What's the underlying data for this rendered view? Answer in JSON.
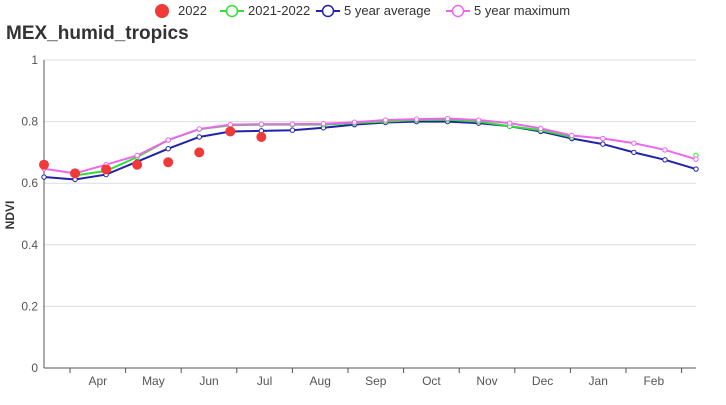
{
  "chart_data": {
    "type": "line",
    "title": "MEX_humid_tropics",
    "xlabel": "",
    "ylabel": "NDVI",
    "ylim": [
      0,
      1
    ],
    "yticks": [
      "0",
      "0.2",
      "0.4",
      "0.6",
      "0.8",
      "1"
    ],
    "ytick_values": [
      0,
      0.2,
      0.4,
      0.6,
      0.8,
      1
    ],
    "month_labels": [
      "Apr",
      "May",
      "Jun",
      "Jul",
      "Aug",
      "Sep",
      "Oct",
      "Nov",
      "Dec",
      "Jan",
      "Feb"
    ],
    "grid": true,
    "legend_position": "top",
    "series": [
      {
        "name": "2022",
        "style": "filled-dot",
        "color": "#f03a3a",
        "values": [
          0.66,
          0.632,
          0.645,
          0.66,
          0.668,
          0.7,
          0.768,
          0.75,
          null,
          null,
          null,
          null,
          null,
          null,
          null,
          null,
          null,
          null,
          null,
          null,
          null,
          null
        ]
      },
      {
        "name": "2021-2022",
        "style": "line",
        "color": "#33dd33",
        "values": [
          null,
          0.625,
          0.64,
          0.685,
          0.74,
          0.775,
          0.788,
          0.79,
          0.79,
          0.79,
          0.795,
          0.8,
          0.805,
          0.806,
          0.8,
          0.785,
          0.772,
          0.75,
          null,
          null,
          null,
          0.69
        ]
      },
      {
        "name": "5 year average",
        "style": "line",
        "color": "#2222aa",
        "values": [
          0.62,
          0.612,
          0.628,
          0.67,
          0.712,
          0.75,
          0.768,
          0.77,
          0.772,
          0.78,
          0.79,
          0.797,
          0.8,
          0.8,
          0.795,
          0.785,
          0.768,
          0.745,
          0.727,
          0.7,
          0.676,
          0.646
        ]
      },
      {
        "name": "5 year maximum",
        "style": "line",
        "color": "#ee66ee",
        "values": [
          0.647,
          0.632,
          0.66,
          0.69,
          0.74,
          0.776,
          0.79,
          0.792,
          0.792,
          0.793,
          0.798,
          0.805,
          0.808,
          0.81,
          0.805,
          0.795,
          0.778,
          0.755,
          0.745,
          0.73,
          0.708,
          0.678
        ]
      }
    ]
  }
}
